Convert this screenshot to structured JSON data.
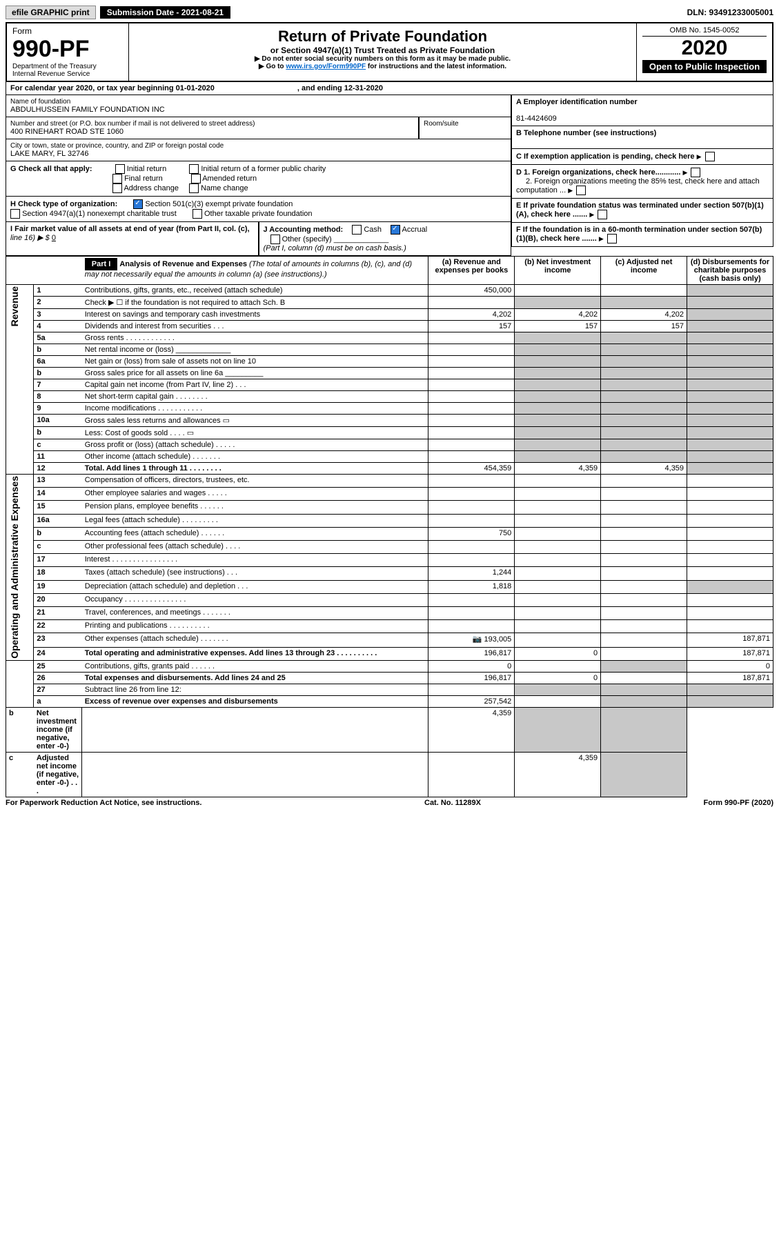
{
  "topbar": {
    "efile": "efile GRAPHIC print",
    "sub_label": "Submission Date - 2021-08-21",
    "dln": "DLN: 93491233005001"
  },
  "header": {
    "form_word": "Form",
    "form_no": "990-PF",
    "dept": "Department of the Treasury",
    "irs": "Internal Revenue Service",
    "title": "Return of Private Foundation",
    "subtitle": "or Section 4947(a)(1) Trust Treated as Private Foundation",
    "warn1": "▶ Do not enter social security numbers on this form as it may be made public.",
    "warn2_pre": "▶ Go to ",
    "link": "www.irs.gov/Form990PF",
    "warn2_post": " for instructions and the latest information.",
    "omb": "OMB No. 1545-0052",
    "year": "2020",
    "inspect": "Open to Public Inspection"
  },
  "cal": {
    "line": "For calendar year 2020, or tax year beginning 01-01-2020",
    "end": ", and ending 12-31-2020"
  },
  "entity": {
    "name_lbl": "Name of foundation",
    "name": "ABDULHUSSEIN FAMILY FOUNDATION INC",
    "addr_lbl": "Number and street (or P.O. box number if mail is not delivered to street address)",
    "addr": "400 RINEHART ROAD STE 1060",
    "room": "Room/suite",
    "city_lbl": "City or town, state or province, country, and ZIP or foreign postal code",
    "city": "LAKE MARY, FL  32746",
    "a_lbl": "A Employer identification number",
    "a_val": "81-4424609",
    "b_lbl": "B Telephone number (see instructions)",
    "c_lbl": "C If exemption application is pending, check here",
    "d1": "D 1. Foreign organizations, check here............",
    "d2": "2. Foreign organizations meeting the 85% test, check here and attach computation ...",
    "e": "E  If private foundation status was terminated under section 507(b)(1)(A), check here .......",
    "f": "F  If the foundation is in a 60-month termination under section 507(b)(1)(B), check here ......."
  },
  "g": {
    "lbl": "G Check all that apply:",
    "opts": [
      "Initial return",
      "Initial return of a former public charity",
      "Final return",
      "Amended return",
      "Address change",
      "Name change"
    ]
  },
  "h": {
    "lbl": "H Check type of organization:",
    "o1": "Section 501(c)(3) exempt private foundation",
    "o2": "Section 4947(a)(1) nonexempt charitable trust",
    "o3": "Other taxable private foundation"
  },
  "i": {
    "lbl": "I Fair market value of all assets at end of year (from Part II, col. (c),",
    "line16": "line 16) ▶ $",
    "val": "0"
  },
  "j": {
    "lbl": "J Accounting method:",
    "cash": "Cash",
    "accr": "Accrual",
    "other": "Other (specify)",
    "note": "(Part I, column (d) must be on cash basis.)"
  },
  "part1": {
    "title": "Part I",
    "heading": "Analysis of Revenue and Expenses",
    "note": "(The total of amounts in columns (b), (c), and (d) may not necessarily equal the amounts in column (a) (see instructions).)",
    "cols": {
      "a": "(a)   Revenue and expenses per books",
      "b": "(b)  Net investment income",
      "c": "(c)  Adjusted net income",
      "d": "(d)  Disbursements for charitable purposes (cash basis only)"
    },
    "rev_label": "Revenue",
    "exp_label": "Operating and Administrative Expenses",
    "rows": [
      {
        "n": "1",
        "t": "Contributions, gifts, grants, etc., received (attach schedule)",
        "a": "450,000"
      },
      {
        "n": "2",
        "t": "Check ▶ ☐ if the foundation is not required to attach Sch. B"
      },
      {
        "n": "3",
        "t": "Interest on savings and temporary cash investments",
        "a": "4,202",
        "b": "4,202",
        "c": "4,202"
      },
      {
        "n": "4",
        "t": "Dividends and interest from securities   .   .   .",
        "a": "157",
        "b": "157",
        "c": "157"
      },
      {
        "n": "5a",
        "t": "Gross rents    .   .   .   .   .   .   .   .   .   .   .   ."
      },
      {
        "n": "b",
        "t": "Net rental income or (loss)  _____________"
      },
      {
        "n": "6a",
        "t": "Net gain or (loss) from sale of assets not on line 10"
      },
      {
        "n": "b",
        "t": "Gross sales price for all assets on line 6a  _________"
      },
      {
        "n": "7",
        "t": "Capital gain net income (from Part IV, line 2)   .   .   ."
      },
      {
        "n": "8",
        "t": "Net short-term capital gain   .   .   .   .   .   .   .   ."
      },
      {
        "n": "9",
        "t": "Income modifications  .   .   .   .   .   .   .   .   .   .   ."
      },
      {
        "n": "10a",
        "t": "Gross sales less returns and allowances  ▭"
      },
      {
        "n": "b",
        "t": "Less: Cost of goods sold       .   .   .   .   ▭"
      },
      {
        "n": "c",
        "t": "Gross profit or (loss) (attach schedule)    .   .   .   .   ."
      },
      {
        "n": "11",
        "t": "Other income (attach schedule)    .   .   .   .   .   .   ."
      },
      {
        "n": "12",
        "t": "Total. Add lines 1 through 11    .   .   .   .   .   .   .   .",
        "bold": true,
        "a": "454,359",
        "b": "4,359",
        "c": "4,359"
      },
      {
        "n": "13",
        "t": "Compensation of officers, directors, trustees, etc."
      },
      {
        "n": "14",
        "t": "Other employee salaries and wages    .   .   .   .   ."
      },
      {
        "n": "15",
        "t": "Pension plans, employee benefits   .   .   .   .   .   ."
      },
      {
        "n": "16a",
        "t": "Legal fees (attach schedule)  .   .   .   .   .   .   .   .   ."
      },
      {
        "n": "b",
        "t": "Accounting fees (attach schedule)   .   .   .   .   .   .",
        "a": "750"
      },
      {
        "n": "c",
        "t": "Other professional fees (attach schedule)    .   .   .   ."
      },
      {
        "n": "17",
        "t": "Interest   .   .   .   .   .   .   .   .   .   .   .   .   .   .   .   ."
      },
      {
        "n": "18",
        "t": "Taxes (attach schedule) (see instructions)     .   .   .",
        "a": "1,244"
      },
      {
        "n": "19",
        "t": "Depreciation (attach schedule) and depletion    .   .   .",
        "a": "1,818"
      },
      {
        "n": "20",
        "t": "Occupancy  .   .   .   .   .   .   .   .   .   .   .   .   .   .   ."
      },
      {
        "n": "21",
        "t": "Travel, conferences, and meetings  .   .   .   .   .   .   ."
      },
      {
        "n": "22",
        "t": "Printing and publications  .   .   .   .   .   .   .   .   .   ."
      },
      {
        "n": "23",
        "t": "Other expenses (attach schedule)  .   .   .   .   .   .   .",
        "a": "193,005",
        "icon": true,
        "d": "187,871"
      },
      {
        "n": "24",
        "t": "Total operating and administrative expenses. Add lines 13 through 23   .   .   .   .   .   .   .   .   .   .",
        "bold": true,
        "a": "196,817",
        "b": "0",
        "d": "187,871"
      },
      {
        "n": "25",
        "t": "Contributions, gifts, grants paid      .   .   .   .   .   .",
        "a": "0",
        "d": "0"
      },
      {
        "n": "26",
        "t": "Total expenses and disbursements. Add lines 24 and 25",
        "bold": true,
        "a": "196,817",
        "b": "0",
        "d": "187,871"
      },
      {
        "n": "27",
        "t": "Subtract line 26 from line 12:"
      },
      {
        "n": "a",
        "t": "Excess of revenue over expenses and disbursements",
        "bold": true,
        "a": "257,542"
      },
      {
        "n": "b",
        "t": "Net investment income (if negative, enter -0-)",
        "bold": true,
        "b": "4,359"
      },
      {
        "n": "c",
        "t": "Adjusted net income (if negative, enter -0-)   .   .   .",
        "bold": true,
        "c": "4,359"
      }
    ]
  },
  "footer": {
    "l": "For Paperwork Reduction Act Notice, see instructions.",
    "c": "Cat. No. 11289X",
    "r": "Form 990-PF (2020)"
  }
}
